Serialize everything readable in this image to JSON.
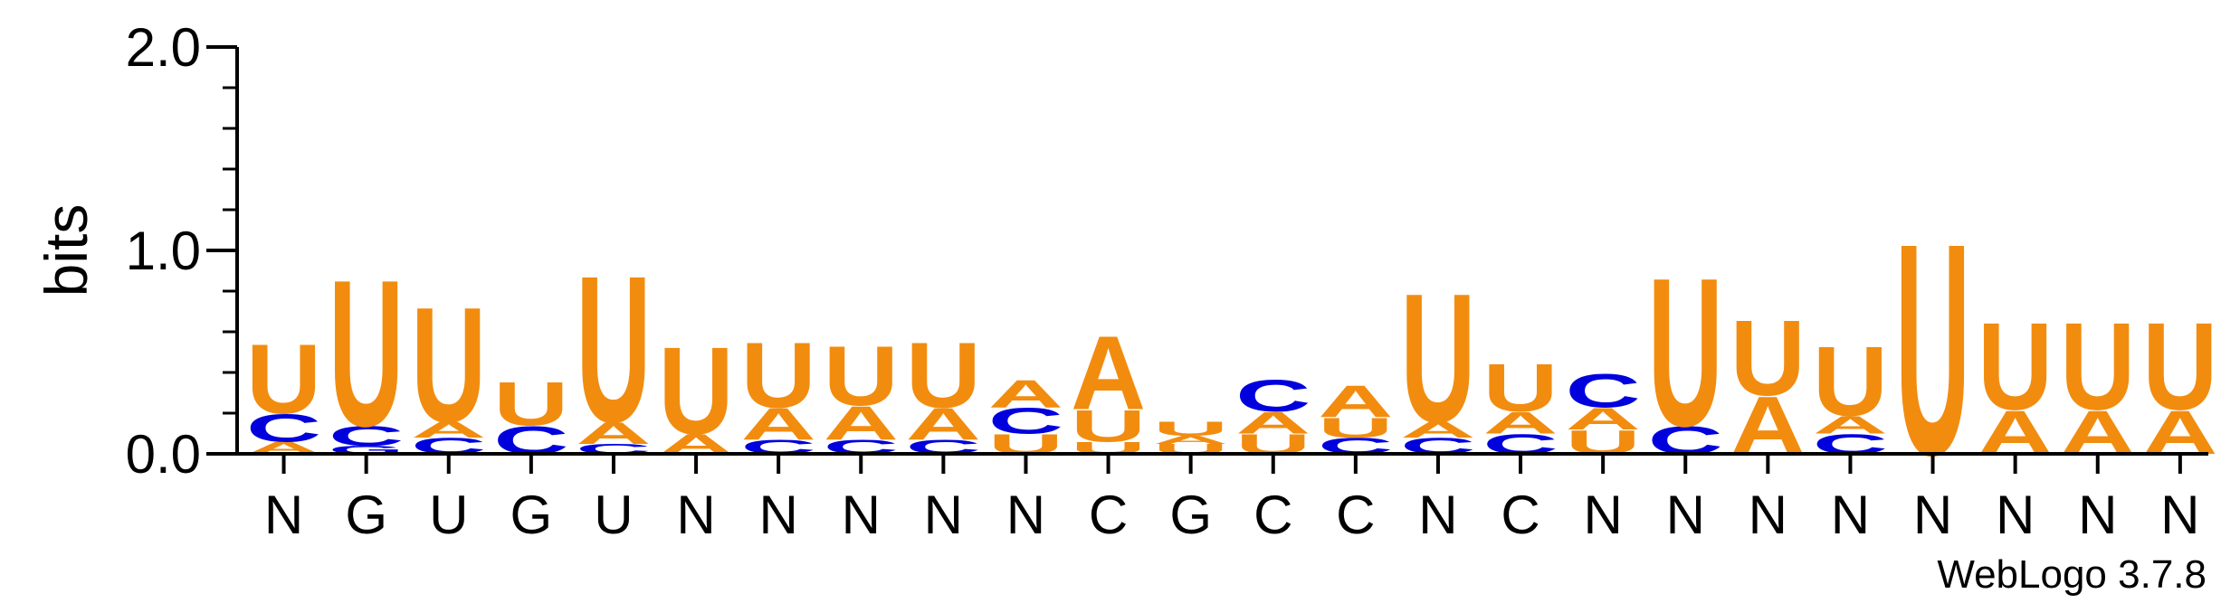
{
  "chart_data": {
    "type": "sequence-logo",
    "ylabel": "bits",
    "ylim": [
      0,
      2.0
    ],
    "yticks": [
      "0.0",
      "1.0",
      "2.0"
    ],
    "xticks": [
      "N",
      "G",
      "U",
      "G",
      "U",
      "N",
      "N",
      "N",
      "N",
      "N",
      "C",
      "G",
      "C",
      "C",
      "N",
      "C",
      "N",
      "N",
      "N",
      "N",
      "N",
      "N",
      "N",
      "N"
    ],
    "footer": "WebLogo 3.7.8",
    "colors": {
      "U": "#f28c0f",
      "A": "#f28c0f",
      "C": "#0000dd",
      "G": "#0000dd"
    },
    "positions": [
      [
        [
          "A",
          0.06
        ],
        [
          "C",
          0.14
        ],
        [
          "U",
          0.35
        ]
      ],
      [
        [
          "G",
          0.04
        ],
        [
          "C",
          0.1
        ],
        [
          "U",
          0.74
        ]
      ],
      [
        [
          "C",
          0.08
        ],
        [
          "A",
          0.08
        ],
        [
          "U",
          0.58
        ]
      ],
      [
        [
          "C",
          0.14
        ],
        [
          "U",
          0.22
        ]
      ],
      [
        [
          "C",
          0.05
        ],
        [
          "A",
          0.11
        ],
        [
          "U",
          0.74
        ]
      ],
      [
        [
          "A",
          0.1
        ],
        [
          "U",
          0.44
        ]
      ],
      [
        [
          "C",
          0.07
        ],
        [
          "A",
          0.16
        ],
        [
          "U",
          0.33
        ]
      ],
      [
        [
          "C",
          0.07
        ],
        [
          "A",
          0.17
        ],
        [
          "U",
          0.3
        ]
      ],
      [
        [
          "C",
          0.07
        ],
        [
          "A",
          0.16
        ],
        [
          "U",
          0.33
        ]
      ],
      [
        [
          "U",
          0.1
        ],
        [
          "C",
          0.13
        ],
        [
          "A",
          0.14
        ]
      ],
      [
        [
          "U",
          0.06
        ],
        [
          "U",
          0.16
        ],
        [
          "A",
          0.37
        ]
      ],
      [
        [
          "U",
          0.05
        ],
        [
          "A",
          0.04
        ],
        [
          "U",
          0.07
        ]
      ],
      [
        [
          "U",
          0.1
        ],
        [
          "A",
          0.11
        ],
        [
          "C",
          0.16
        ]
      ],
      [
        [
          "C",
          0.08
        ],
        [
          "U",
          0.1
        ],
        [
          "A",
          0.16
        ]
      ],
      [
        [
          "C",
          0.08
        ],
        [
          "A",
          0.08
        ],
        [
          "U",
          0.65
        ]
      ],
      [
        [
          "C",
          0.1
        ],
        [
          "A",
          0.11
        ],
        [
          "U",
          0.24
        ]
      ],
      [
        [
          "U",
          0.12
        ],
        [
          "A",
          0.11
        ],
        [
          "C",
          0.17
        ]
      ],
      [
        [
          "C",
          0.14
        ],
        [
          "U",
          0.75
        ]
      ],
      [
        [
          "A",
          0.29
        ],
        [
          "U",
          0.38
        ]
      ],
      [
        [
          "C",
          0.1
        ],
        [
          "A",
          0.09
        ],
        [
          "U",
          0.35
        ]
      ],
      [
        [
          "U",
          1.07
        ]
      ],
      [
        [
          "A",
          0.22
        ],
        [
          "U",
          0.44
        ]
      ],
      [
        [
          "A",
          0.22
        ],
        [
          "U",
          0.44
        ]
      ],
      [
        [
          "A",
          0.22
        ],
        [
          "U",
          0.44
        ]
      ]
    ]
  }
}
